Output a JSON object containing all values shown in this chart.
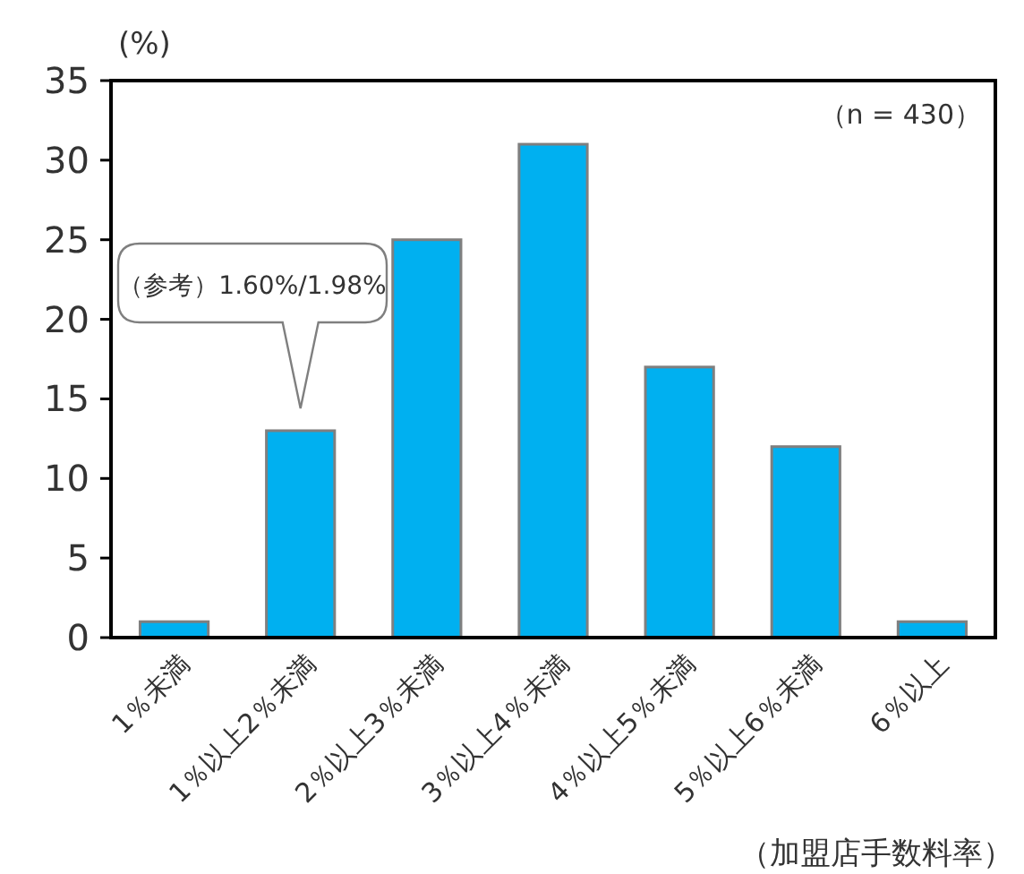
{
  "chart_data": {
    "type": "bar",
    "categories": [
      "1％未満",
      "1％以上2％未満",
      "2％以上3％未満",
      "3％以上4％未満",
      "4％以上5％未満",
      "5％以上6％未満",
      "6％以上"
    ],
    "values": [
      1,
      13,
      25,
      31,
      17,
      12,
      1
    ],
    "color": "#00b0f0",
    "ylim": [
      0,
      35
    ],
    "yticks": [
      0,
      5,
      10,
      15,
      20,
      25,
      30,
      35
    ],
    "ylabel": "(%)",
    "xlabel": "（加盟店手数料率）",
    "annotations": [
      "（n = 430）",
      "（参考）1.60%/1.98%"
    ]
  }
}
